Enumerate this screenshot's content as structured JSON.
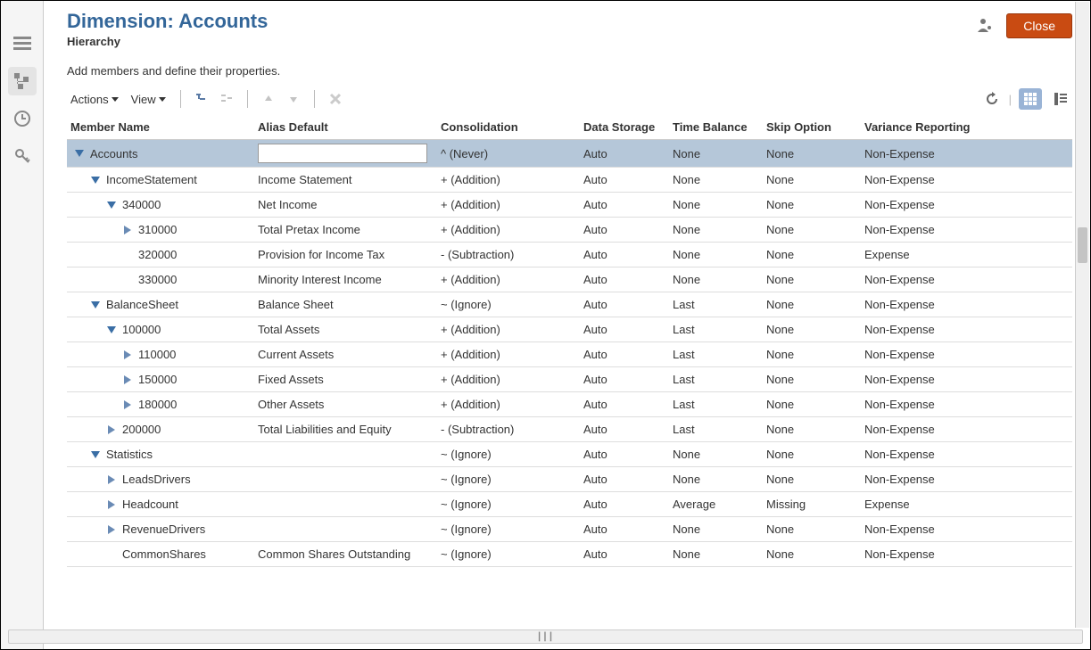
{
  "header": {
    "title": "Dimension: Accounts",
    "subtitle": "Hierarchy",
    "description": "Add members and define their properties.",
    "close_label": "Close"
  },
  "toolbar": {
    "actions_label": "Actions",
    "view_label": "View"
  },
  "columns": {
    "member_name": "Member Name",
    "alias_default": "Alias Default",
    "consolidation": "Consolidation",
    "data_storage": "Data Storage",
    "time_balance": "Time Balance",
    "skip_option": "Skip Option",
    "variance_reporting": "Variance Reporting"
  },
  "column_widths": {
    "member_name": "210px",
    "alias_default": "205px",
    "consolidation": "160px",
    "data_storage": "100px",
    "time_balance": "105px",
    "skip_option": "110px",
    "variance_reporting": "auto"
  },
  "colors": {
    "title": "#336699",
    "close_bg": "#c94b12",
    "selected_row": "#b5c7d9",
    "toggle_active": "#9ab4d6",
    "triangle_expanded": "#3a6ea5",
    "triangle_collapsed": "#6a8bb5"
  },
  "rows": [
    {
      "name": "Accounts",
      "indent": 0,
      "expand": "down",
      "alias": "",
      "alias_editable": true,
      "consolidation": "^ (Never)",
      "storage": "Auto",
      "time": "None",
      "skip": "None",
      "variance": "Non-Expense",
      "selected": true
    },
    {
      "name": "IncomeStatement",
      "indent": 1,
      "expand": "down",
      "alias": "Income Statement",
      "consolidation": "+ (Addition)",
      "storage": "Auto",
      "time": "None",
      "skip": "None",
      "variance": "Non-Expense"
    },
    {
      "name": "340000",
      "indent": 2,
      "expand": "down",
      "alias": "Net Income",
      "consolidation": "+ (Addition)",
      "storage": "Auto",
      "time": "None",
      "skip": "None",
      "variance": "Non-Expense"
    },
    {
      "name": "310000",
      "indent": 3,
      "expand": "right",
      "alias": "Total Pretax Income",
      "consolidation": "+ (Addition)",
      "storage": "Auto",
      "time": "None",
      "skip": "None",
      "variance": "Non-Expense"
    },
    {
      "name": "320000",
      "indent": 3,
      "expand": "none",
      "alias": "Provision for Income Tax",
      "consolidation": "- (Subtraction)",
      "storage": "Auto",
      "time": "None",
      "skip": "None",
      "variance": "Expense"
    },
    {
      "name": "330000",
      "indent": 3,
      "expand": "none",
      "alias": "Minority Interest Income",
      "consolidation": "+ (Addition)",
      "storage": "Auto",
      "time": "None",
      "skip": "None",
      "variance": "Non-Expense"
    },
    {
      "name": "BalanceSheet",
      "indent": 1,
      "expand": "down",
      "alias": "Balance Sheet",
      "consolidation": "~ (Ignore)",
      "storage": "Auto",
      "time": "Last",
      "skip": "None",
      "variance": "Non-Expense"
    },
    {
      "name": "100000",
      "indent": 2,
      "expand": "down",
      "alias": "Total Assets",
      "consolidation": "+ (Addition)",
      "storage": "Auto",
      "time": "Last",
      "skip": "None",
      "variance": "Non-Expense"
    },
    {
      "name": "110000",
      "indent": 3,
      "expand": "right",
      "alias": "Current Assets",
      "consolidation": "+ (Addition)",
      "storage": "Auto",
      "time": "Last",
      "skip": "None",
      "variance": "Non-Expense"
    },
    {
      "name": "150000",
      "indent": 3,
      "expand": "right",
      "alias": "Fixed Assets",
      "consolidation": "+ (Addition)",
      "storage": "Auto",
      "time": "Last",
      "skip": "None",
      "variance": "Non-Expense"
    },
    {
      "name": "180000",
      "indent": 3,
      "expand": "right",
      "alias": "Other Assets",
      "consolidation": "+ (Addition)",
      "storage": "Auto",
      "time": "Last",
      "skip": "None",
      "variance": "Non-Expense"
    },
    {
      "name": "200000",
      "indent": 2,
      "expand": "right",
      "alias": "Total Liabilities and Equity",
      "consolidation": "- (Subtraction)",
      "storage": "Auto",
      "time": "Last",
      "skip": "None",
      "variance": "Non-Expense"
    },
    {
      "name": "Statistics",
      "indent": 1,
      "expand": "down",
      "alias": "",
      "consolidation": "~ (Ignore)",
      "storage": "Auto",
      "time": "None",
      "skip": "None",
      "variance": "Non-Expense"
    },
    {
      "name": "LeadsDrivers",
      "indent": 2,
      "expand": "right",
      "alias": "",
      "consolidation": "~ (Ignore)",
      "storage": "Auto",
      "time": "None",
      "skip": "None",
      "variance": "Non-Expense"
    },
    {
      "name": "Headcount",
      "indent": 2,
      "expand": "right",
      "alias": "",
      "consolidation": "~ (Ignore)",
      "storage": "Auto",
      "time": "Average",
      "skip": "Missing",
      "variance": "Expense"
    },
    {
      "name": "RevenueDrivers",
      "indent": 2,
      "expand": "right",
      "alias": "",
      "consolidation": "~ (Ignore)",
      "storage": "Auto",
      "time": "None",
      "skip": "None",
      "variance": "Non-Expense"
    },
    {
      "name": "CommonShares",
      "indent": 2,
      "expand": "none",
      "alias": "Common Shares Outstanding",
      "consolidation": "~ (Ignore)",
      "storage": "Auto",
      "time": "None",
      "skip": "None",
      "variance": "Non-Expense"
    }
  ]
}
